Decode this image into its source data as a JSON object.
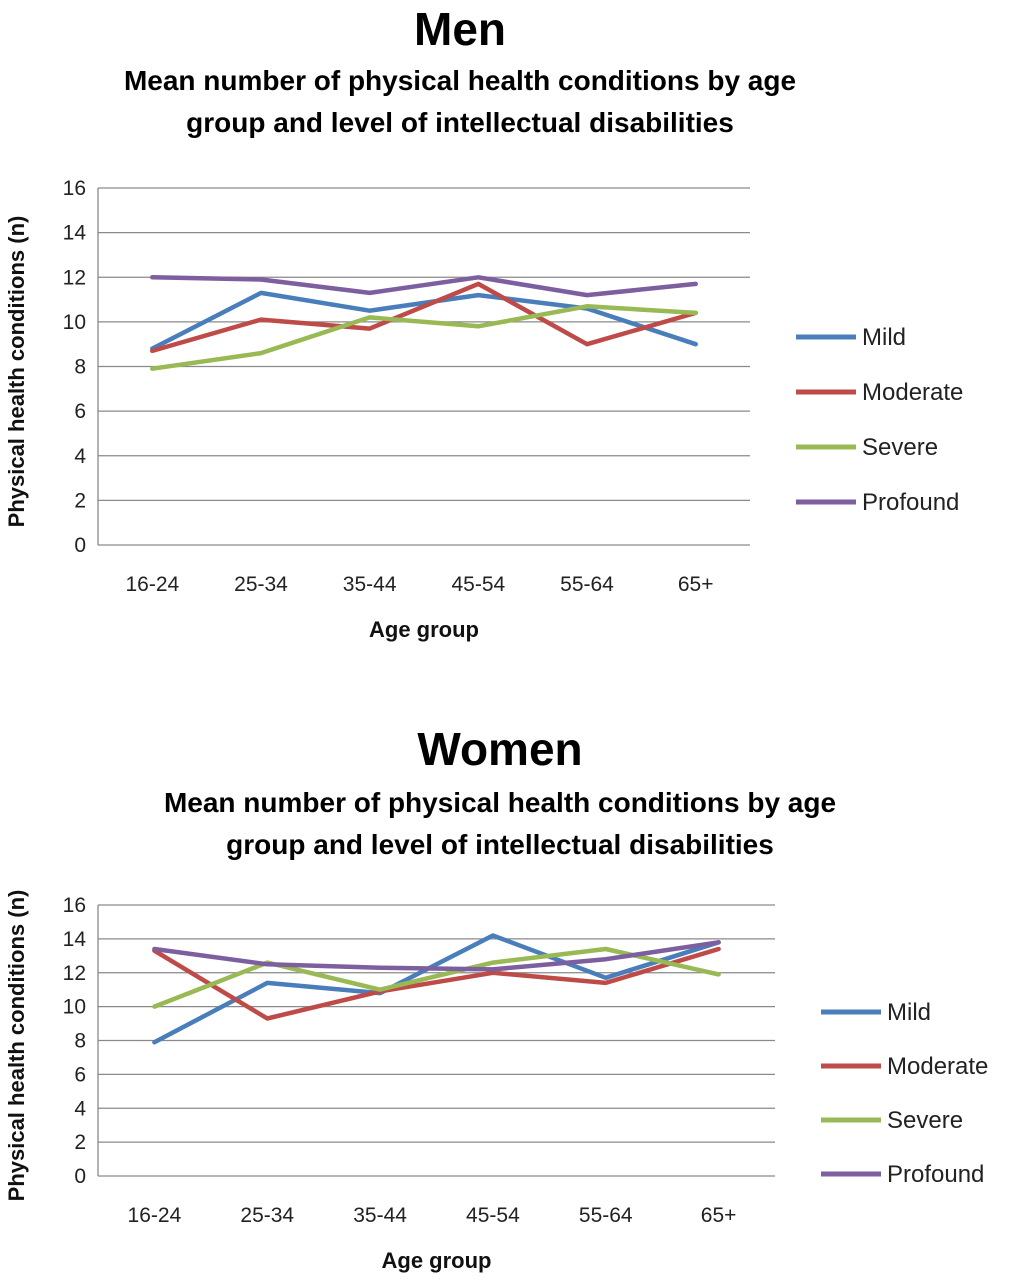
{
  "chart_data": [
    {
      "type": "line",
      "heading": "Men",
      "title": "Mean number of physical health conditions by age group and level of intellectual disabilities",
      "title_lines": [
        "Mean number of physical health conditions by age",
        "group and level of intellectual disabilities"
      ],
      "xlabel": "Age group",
      "ylabel": "Physical health conditions (n)",
      "ylim": [
        0,
        16
      ],
      "yticks": [
        "0",
        "2",
        "4",
        "6",
        "8",
        "10",
        "12",
        "14",
        "16"
      ],
      "categories": [
        "16-24",
        "25-34",
        "35-44",
        "45-54",
        "55-64",
        "65+"
      ],
      "grid": true,
      "legend_position": "right",
      "series": [
        {
          "name": "Mild",
          "color": "#4a7ebb",
          "values": [
            8.8,
            11.3,
            10.5,
            11.2,
            10.6,
            9.0
          ]
        },
        {
          "name": "Moderate",
          "color": "#be4b48",
          "values": [
            8.7,
            10.1,
            9.7,
            11.7,
            9.0,
            10.4
          ]
        },
        {
          "name": "Severe",
          "color": "#98b954",
          "values": [
            7.9,
            8.6,
            10.2,
            9.8,
            10.7,
            10.4
          ]
        },
        {
          "name": "Profound",
          "color": "#7d5fa0",
          "values": [
            12.0,
            11.9,
            11.3,
            12.0,
            11.2,
            11.7
          ]
        }
      ]
    },
    {
      "type": "line",
      "heading": "Women",
      "title": "Mean number of physical health conditions by age group and level of intellectual disabilities",
      "title_lines": [
        "Mean number of physical health conditions by age",
        "group and level of intellectual disabilities"
      ],
      "xlabel": "Age group",
      "ylabel": "Physical health conditions (n)",
      "ylim": [
        0,
        16
      ],
      "yticks": [
        "0",
        "2",
        "4",
        "6",
        "8",
        "10",
        "12",
        "14",
        "16"
      ],
      "categories": [
        "16-24",
        "25-34",
        "35-44",
        "45-54",
        "55-64",
        "65+"
      ],
      "grid": true,
      "legend_position": "right",
      "series": [
        {
          "name": "Mild",
          "color": "#4a7ebb",
          "values": [
            7.9,
            11.4,
            10.8,
            14.2,
            11.7,
            13.8
          ]
        },
        {
          "name": "Moderate",
          "color": "#be4b48",
          "values": [
            13.3,
            9.3,
            10.9,
            12.0,
            11.4,
            13.4
          ]
        },
        {
          "name": "Severe",
          "color": "#98b954",
          "values": [
            10.0,
            12.6,
            11.0,
            12.6,
            13.4,
            11.9
          ]
        },
        {
          "name": "Profound",
          "color": "#7d5fa0",
          "values": [
            13.4,
            12.5,
            12.3,
            12.2,
            12.8,
            13.8
          ]
        }
      ]
    }
  ]
}
